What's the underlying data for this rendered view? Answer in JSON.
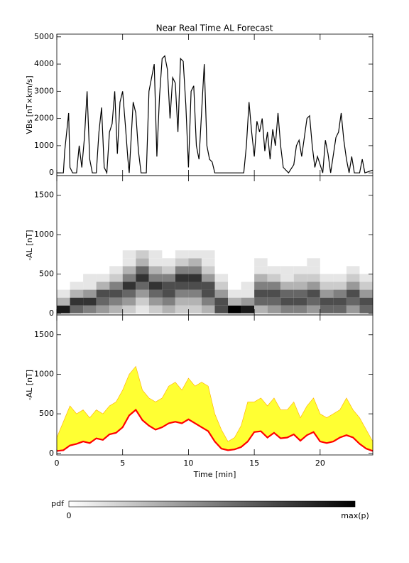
{
  "chart_data": [
    {
      "type": "line",
      "title": "Near Real Time AL Forecast",
      "ylabel": "VBs [nT×km/s]",
      "color": "#000000",
      "xlim": [
        0,
        24
      ],
      "xticks": [
        0,
        5,
        10,
        15,
        20
      ],
      "ylim": [
        -100,
        5100
      ],
      "yticks": [
        0,
        1000,
        2000,
        3000,
        4000,
        5000
      ],
      "x": [
        0,
        0.5,
        0.6,
        0.9,
        1.0,
        1.2,
        1.5,
        1.7,
        1.9,
        2.1,
        2.3,
        2.5,
        2.7,
        3.0,
        3.2,
        3.4,
        3.6,
        3.8,
        4.0,
        4.2,
        4.4,
        4.6,
        4.8,
        5.0,
        5.2,
        5.4,
        5.5,
        5.8,
        6.0,
        6.2,
        6.4,
        6.8,
        7.0,
        7.4,
        7.6,
        7.8,
        8.0,
        8.2,
        8.4,
        8.6,
        8.8,
        9.0,
        9.2,
        9.4,
        9.6,
        9.8,
        10.0,
        10.2,
        10.4,
        10.6,
        10.8,
        11.2,
        11.4,
        11.6,
        11.8,
        12.0,
        14.2,
        14.4,
        14.6,
        14.8,
        15.0,
        15.2,
        15.4,
        15.6,
        15.8,
        16.0,
        16.2,
        16.4,
        16.6,
        16.8,
        17.0,
        17.2,
        17.6,
        18.0,
        18.2,
        18.4,
        18.6,
        19.0,
        19.2,
        19.4,
        19.6,
        19.8,
        20.0,
        20.2,
        20.4,
        20.6,
        20.8,
        21.2,
        21.4,
        21.6,
        21.8,
        22.0,
        22.2,
        22.4,
        22.6,
        23.0,
        23.2,
        23.4,
        24
      ],
      "values": [
        0,
        0,
        800,
        2200,
        200,
        0,
        0,
        1000,
        200,
        1300,
        3000,
        500,
        0,
        0,
        1500,
        2400,
        200,
        0,
        1500,
        1800,
        3000,
        700,
        2600,
        3000,
        1800,
        500,
        0,
        2600,
        2200,
        800,
        0,
        0,
        3000,
        4000,
        600,
        2800,
        4200,
        4300,
        3800,
        2000,
        3500,
        3300,
        1500,
        4200,
        4100,
        2500,
        200,
        3000,
        3200,
        1000,
        500,
        4000,
        1000,
        500,
        400,
        0,
        0,
        1000,
        2600,
        1500,
        600,
        1900,
        1500,
        2000,
        800,
        1500,
        500,
        1600,
        1000,
        2200,
        1000,
        200,
        0,
        300,
        1000,
        1200,
        600,
        2000,
        2100,
        1000,
        200,
        600,
        300,
        0,
        1200,
        700,
        0,
        1300,
        1500,
        2200,
        1200,
        500,
        0,
        600,
        0,
        0,
        500,
        0,
        100
      ]
    },
    {
      "type": "heatmap",
      "ylabel": "-AL [nT]",
      "xlim": [
        0,
        24
      ],
      "xticks": [
        0,
        5,
        10,
        15,
        20
      ],
      "ylim": [
        -20,
        1750
      ],
      "yticks": [
        0,
        500,
        1000,
        1500
      ],
      "x_bins": [
        0,
        1,
        2,
        3,
        4,
        5,
        6,
        7,
        8,
        9,
        10,
        11,
        12,
        13,
        14,
        15,
        16,
        17,
        18,
        19,
        20,
        21,
        22,
        23,
        24
      ],
      "y_bins": [
        0,
        100,
        200,
        300,
        400,
        500,
        600,
        700,
        800
      ],
      "z": [
        [
          0.9,
          0.3,
          0.1,
          0,
          0,
          0,
          0,
          0
        ],
        [
          0.6,
          0.8,
          0.3,
          0.1,
          0,
          0,
          0,
          0
        ],
        [
          0.5,
          0.8,
          0.4,
          0.1,
          0.1,
          0,
          0,
          0
        ],
        [
          0.4,
          0.6,
          0.7,
          0.3,
          0.1,
          0,
          0,
          0
        ],
        [
          0.3,
          0.5,
          0.7,
          0.5,
          0.2,
          0.1,
          0,
          0
        ],
        [
          0.2,
          0.4,
          0.6,
          0.8,
          0.5,
          0.3,
          0.1,
          0.1
        ],
        [
          0.1,
          0.2,
          0.4,
          0.6,
          0.8,
          0.6,
          0.3,
          0.2
        ],
        [
          0.2,
          0.4,
          0.6,
          0.8,
          0.5,
          0.3,
          0.1,
          0.1
        ],
        [
          0.3,
          0.5,
          0.7,
          0.7,
          0.5,
          0.2,
          0.1,
          0
        ],
        [
          0.2,
          0.3,
          0.5,
          0.7,
          0.8,
          0.5,
          0.2,
          0.1
        ],
        [
          0.2,
          0.3,
          0.5,
          0.7,
          0.8,
          0.5,
          0.3,
          0.1
        ],
        [
          0.3,
          0.5,
          0.7,
          0.7,
          0.4,
          0.2,
          0.1,
          0.1
        ],
        [
          0.7,
          0.7,
          0.4,
          0.2,
          0.1,
          0,
          0,
          0
        ],
        [
          1,
          0.3,
          0.1,
          0,
          0,
          0,
          0,
          0
        ],
        [
          0.9,
          0.4,
          0.1,
          0.1,
          0,
          0,
          0,
          0
        ],
        [
          0.3,
          0.6,
          0.7,
          0.5,
          0.3,
          0.1,
          0.1,
          0
        ],
        [
          0.4,
          0.6,
          0.7,
          0.5,
          0.2,
          0.1,
          0,
          0
        ],
        [
          0.5,
          0.7,
          0.6,
          0.3,
          0.1,
          0.1,
          0,
          0
        ],
        [
          0.5,
          0.7,
          0.6,
          0.3,
          0.2,
          0.1,
          0,
          0
        ],
        [
          0.4,
          0.6,
          0.7,
          0.4,
          0.2,
          0.1,
          0.1,
          0
        ],
        [
          0.6,
          0.7,
          0.4,
          0.2,
          0.1,
          0,
          0,
          0
        ],
        [
          0.6,
          0.7,
          0.5,
          0.2,
          0.1,
          0,
          0,
          0
        ],
        [
          0.4,
          0.6,
          0.7,
          0.4,
          0.2,
          0.1,
          0,
          0
        ],
        [
          0.6,
          0.7,
          0.4,
          0.2,
          0.1,
          0,
          0,
          0
        ]
      ],
      "colorbar": {
        "label": "pdf",
        "min_label": "0",
        "max_label": "max(p)"
      }
    },
    {
      "type": "area",
      "ylabel": "-AL [nT]",
      "xlabel": "Time [min]",
      "xlim": [
        0,
        24
      ],
      "xticks": [
        0,
        5,
        10,
        15,
        20
      ],
      "ylim": [
        -20,
        1750
      ],
      "yticks": [
        0,
        500,
        1000,
        1500
      ],
      "x": [
        0,
        0.5,
        1,
        1.5,
        2,
        2.5,
        3,
        3.5,
        4,
        4.5,
        5,
        5.5,
        6,
        6.5,
        7,
        7.5,
        8,
        8.5,
        9,
        9.5,
        10,
        10.5,
        11,
        11.5,
        12,
        12.5,
        13,
        13.5,
        14,
        14.5,
        15,
        15.5,
        16,
        16.5,
        17,
        17.5,
        18,
        18.5,
        19,
        19.5,
        20,
        20.5,
        21,
        21.5,
        22,
        22.5,
        23,
        23.5,
        24
      ],
      "series": [
        {
          "color": "#ffff33",
          "values": [
            200,
            400,
            600,
            500,
            550,
            450,
            550,
            500,
            600,
            650,
            800,
            1000,
            1100,
            800,
            700,
            650,
            700,
            850,
            900,
            800,
            950,
            850,
            900,
            850,
            500,
            300,
            150,
            200,
            350,
            650,
            650,
            700,
            600,
            700,
            550,
            550,
            650,
            450,
            600,
            700,
            500,
            450,
            500,
            550,
            700,
            550,
            450,
            300,
            150
          ]
        },
        {
          "color": "#ff0000",
          "values": [
            30,
            40,
            100,
            120,
            150,
            130,
            190,
            170,
            240,
            260,
            330,
            480,
            550,
            420,
            350,
            300,
            330,
            380,
            400,
            380,
            430,
            380,
            330,
            280,
            150,
            60,
            40,
            50,
            80,
            150,
            270,
            280,
            200,
            260,
            190,
            200,
            240,
            160,
            230,
            270,
            150,
            130,
            150,
            200,
            230,
            200,
            120,
            60,
            30
          ]
        }
      ]
    }
  ]
}
